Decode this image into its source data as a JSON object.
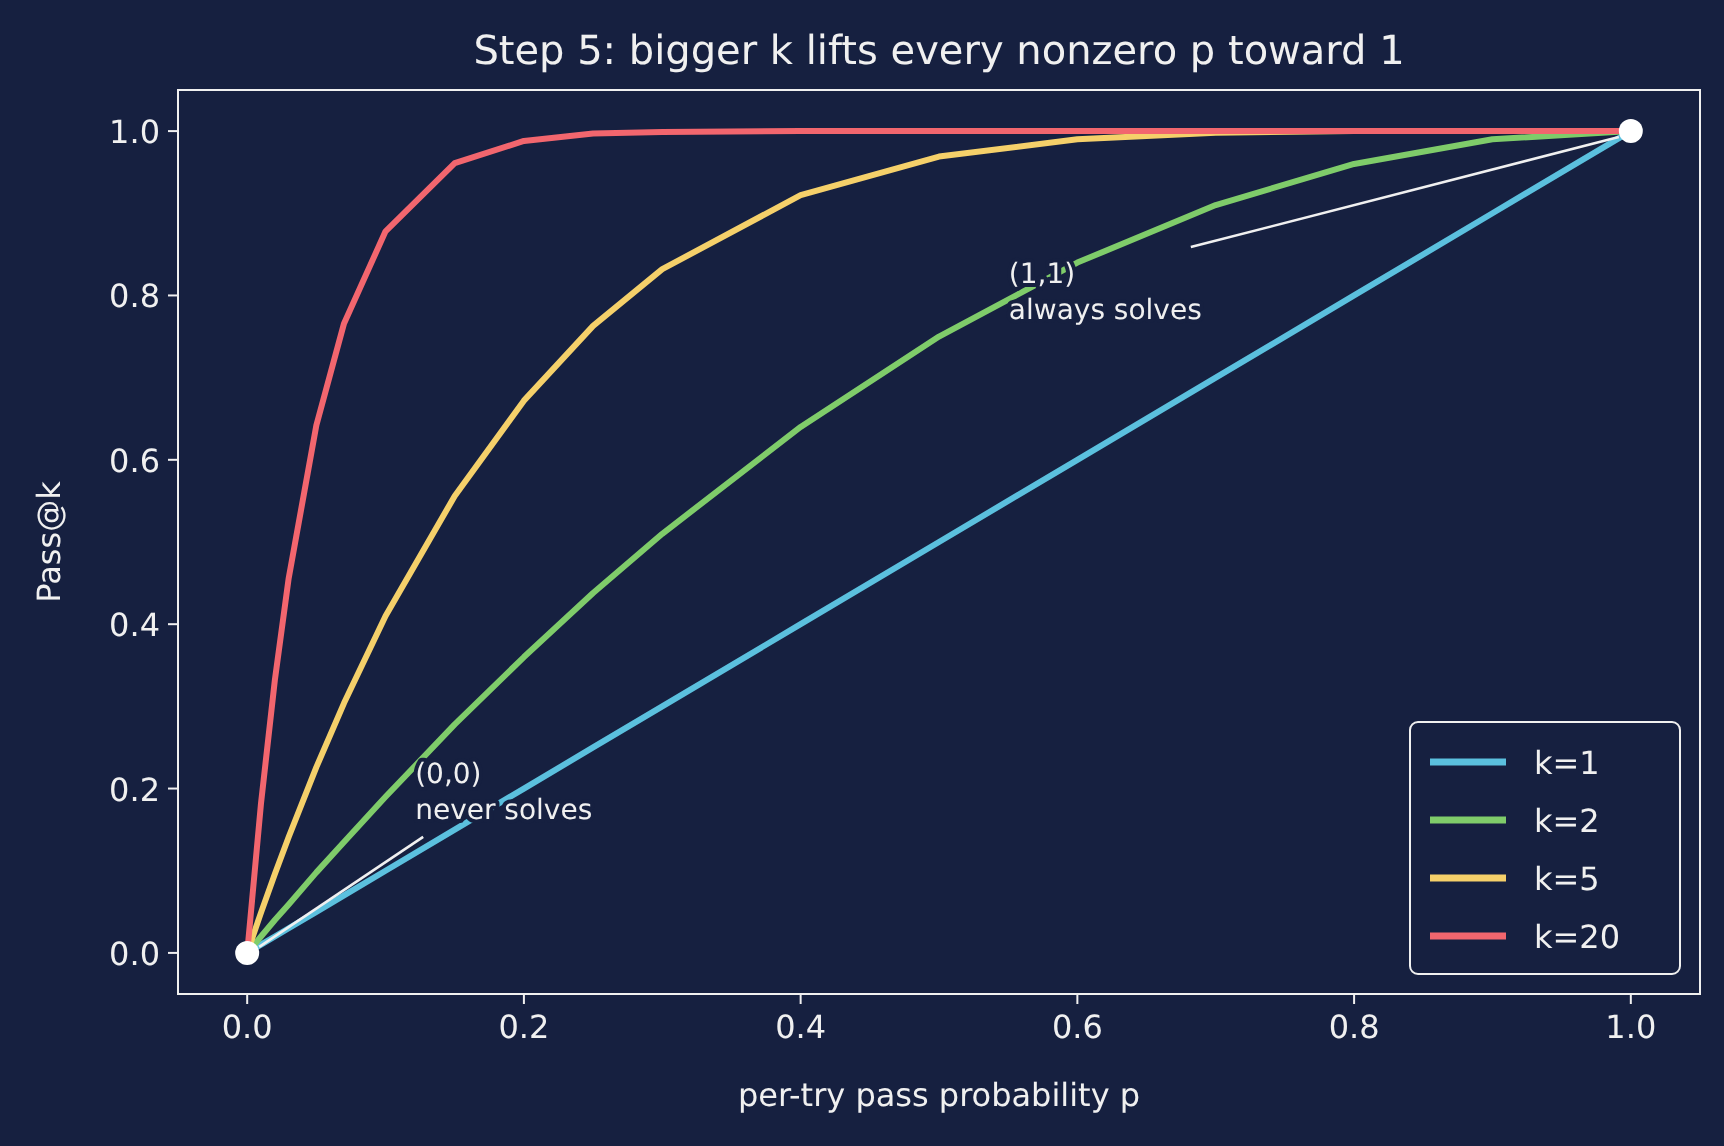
{
  "chart_data": {
    "type": "line",
    "title": "Step 5: bigger k lifts every nonzero p toward 1",
    "xlabel": "per-try pass probability  p",
    "ylabel": "Pass@k",
    "x": [
      0,
      0.01,
      0.02,
      0.03,
      0.05,
      0.07,
      0.1,
      0.15,
      0.2,
      0.25,
      0.3,
      0.4,
      0.5,
      0.6,
      0.7,
      0.8,
      0.9,
      1
    ],
    "series": [
      {
        "name": "k=1",
        "color": "#5bc0de",
        "values": [
          0,
          0.01,
          0.02,
          0.03,
          0.05,
          0.07,
          0.1,
          0.15,
          0.2,
          0.25,
          0.3,
          0.4,
          0.5,
          0.6,
          0.7,
          0.8,
          0.9,
          1
        ]
      },
      {
        "name": "k=2",
        "color": "#7fcc6a",
        "values": [
          0,
          0.02,
          0.04,
          0.059,
          0.098,
          0.135,
          0.19,
          0.278,
          0.36,
          0.438,
          0.51,
          0.64,
          0.75,
          0.84,
          0.91,
          0.96,
          0.99,
          1
        ]
      },
      {
        "name": "k=5",
        "color": "#f5d06a",
        "values": [
          0,
          0.049,
          0.096,
          0.141,
          0.226,
          0.304,
          0.41,
          0.556,
          0.672,
          0.763,
          0.832,
          0.922,
          0.969,
          0.99,
          0.998,
          1,
          1,
          1
        ]
      },
      {
        "name": "k=20",
        "color": "#f2666e",
        "values": [
          0,
          0.182,
          0.332,
          0.456,
          0.642,
          0.766,
          0.878,
          0.961,
          0.988,
          0.997,
          0.999,
          1,
          1,
          1,
          1,
          1,
          1,
          1
        ]
      },
      {
        "type": "scatter",
        "color": "#ffffff",
        "x": [
          0,
          1
        ],
        "values": [
          0,
          1
        ]
      }
    ],
    "annotations": [
      {
        "text": "(0,0)\nnever solves",
        "x": 0,
        "y": 0
      },
      {
        "text": "(1,1)\nalways solves",
        "x": 1,
        "y": 1
      }
    ],
    "xlim": [
      -0.05,
      1.05
    ],
    "ylim": [
      -0.05,
      1.05
    ],
    "xticks": [
      {
        "value": 0,
        "label": "0.0"
      },
      {
        "value": 0.2,
        "label": "0.2"
      },
      {
        "value": 0.4,
        "label": "0.4"
      },
      {
        "value": 0.6,
        "label": "0.6"
      },
      {
        "value": 0.8,
        "label": "0.8"
      },
      {
        "value": 1,
        "label": "1.0"
      }
    ],
    "yticks": [
      {
        "value": 0,
        "label": "0.0"
      },
      {
        "value": 0.2,
        "label": "0.2"
      },
      {
        "value": 0.4,
        "label": "0.4"
      },
      {
        "value": 0.6,
        "label": "0.6"
      },
      {
        "value": 0.8,
        "label": "0.8"
      },
      {
        "value": 1,
        "label": "1.0"
      }
    ],
    "grid": false,
    "legend": "bottom right",
    "line_style": "solid"
  }
}
